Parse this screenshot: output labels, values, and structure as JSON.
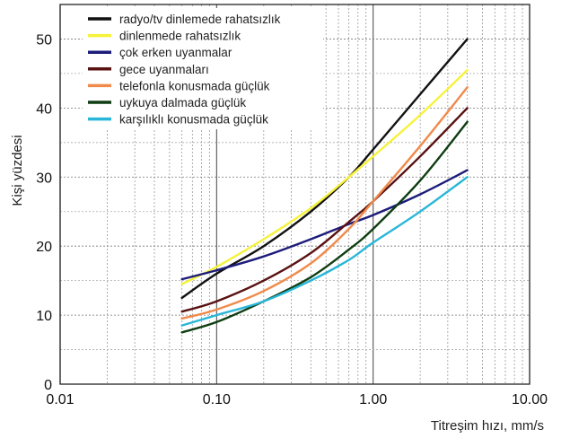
{
  "chart_data": {
    "type": "line",
    "title": "",
    "xlabel": "Titreşim hızı, mm/s",
    "ylabel": "Kişi yüzdesi",
    "x_scale": "log",
    "xlim": [
      0.01,
      10
    ],
    "ylim": [
      0,
      55
    ],
    "x_ticks": [
      0.01,
      0.1,
      1,
      10
    ],
    "x_tick_labels": [
      "0.01",
      "0.10",
      "1.00",
      "10.00"
    ],
    "y_ticks": [
      0,
      10,
      20,
      30,
      40,
      50
    ],
    "y_tick_labels": [
      "0",
      "10",
      "20",
      "30",
      "40",
      "50"
    ],
    "grid": true,
    "legend_position": "top-left",
    "series": [
      {
        "name": "radyo/tv dinlemede rahatsızlık",
        "color": "#111111",
        "x": [
          0.06,
          0.1,
          0.2,
          0.4,
          0.7,
          1.0,
          2.0,
          4.0
        ],
        "y": [
          12.5,
          16,
          20,
          25,
          30,
          34,
          42,
          50
        ]
      },
      {
        "name": "dinlenmede rahatsızlık",
        "color": "#f6f23a",
        "x": [
          0.06,
          0.1,
          0.2,
          0.4,
          0.7,
          1.0,
          2.0,
          4.0
        ],
        "y": [
          14.5,
          17,
          21,
          25.5,
          30,
          33,
          39,
          45.5
        ]
      },
      {
        "name": "çok erken uyanmalar",
        "color": "#1c1c7a",
        "x": [
          0.06,
          0.1,
          0.2,
          0.4,
          0.7,
          1.0,
          2.0,
          4.0
        ],
        "y": [
          15.2,
          16.5,
          18.5,
          21,
          23.2,
          24.5,
          27.5,
          31
        ]
      },
      {
        "name": "gece uyanmaları",
        "color": "#5a1212",
        "x": [
          0.06,
          0.1,
          0.2,
          0.4,
          0.7,
          1.0,
          2.0,
          4.0
        ],
        "y": [
          10.5,
          12,
          15,
          19,
          23.5,
          26.5,
          33,
          40
        ]
      },
      {
        "name": "telefonla konusmada güçlük",
        "color": "#f08a4b",
        "x": [
          0.06,
          0.1,
          0.2,
          0.4,
          0.7,
          1.0,
          2.0,
          4.0
        ],
        "y": [
          9.5,
          10.8,
          13.5,
          17.5,
          22.5,
          26.5,
          34.5,
          43
        ]
      },
      {
        "name": "uykuya dalmada güçlük",
        "color": "#0f3d12",
        "x": [
          0.06,
          0.1,
          0.2,
          0.4,
          0.7,
          1.0,
          2.0,
          4.0
        ],
        "y": [
          7.5,
          9,
          12,
          15.5,
          19.5,
          22.5,
          29.5,
          38
        ]
      },
      {
        "name": "karşılıklı konusmada güçlük",
        "color": "#29b6d8",
        "x": [
          0.06,
          0.1,
          0.2,
          0.4,
          0.7,
          1.0,
          2.0,
          4.0
        ],
        "y": [
          8.5,
          10,
          12,
          15,
          18,
          20.5,
          25,
          30
        ]
      }
    ]
  }
}
